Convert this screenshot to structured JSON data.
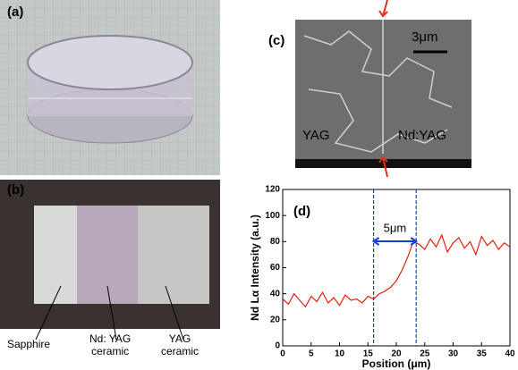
{
  "panels": {
    "a": {
      "label": "(a)"
    },
    "b": {
      "label": "(b)",
      "sapphire": "Sapphire",
      "ndyag": "Nd: YAG\nceramic",
      "yag": "YAG\nceramic"
    },
    "c": {
      "label": "(c)",
      "scale": "3μm",
      "left": "YAG",
      "right": "Nd:YAG"
    }
  },
  "chart_data": {
    "type": "line",
    "label": "(d)",
    "xlabel": "Position  (μm)",
    "ylabel": "Nd Lα Intensity  (a.u.)",
    "color": "#e02010",
    "x": [
      0,
      1,
      2,
      3,
      4,
      5,
      6,
      7,
      8,
      9,
      10,
      11,
      12,
      13,
      14,
      15,
      16,
      17,
      18,
      19,
      20,
      21,
      22,
      23,
      24,
      25,
      26,
      27,
      28,
      29,
      30,
      31,
      32,
      33,
      34,
      35,
      36,
      37,
      38,
      39,
      40
    ],
    "values": [
      36,
      32,
      40,
      35,
      30,
      38,
      34,
      41,
      33,
      37,
      31,
      39,
      35,
      36,
      33,
      38,
      36,
      40,
      42,
      45,
      50,
      58,
      68,
      80,
      78,
      74,
      82,
      76,
      85,
      72,
      79,
      83,
      75,
      80,
      70,
      84,
      77,
      81,
      74,
      79,
      76
    ],
    "xlim": [
      0,
      40
    ],
    "ylim": [
      0,
      120
    ],
    "xticks": [
      0,
      5,
      10,
      15,
      20,
      25,
      30,
      35,
      40
    ],
    "yticks": [
      0,
      20,
      40,
      60,
      80,
      100,
      120
    ],
    "vlines": [
      16,
      23.5
    ],
    "annotation": "5μm"
  }
}
